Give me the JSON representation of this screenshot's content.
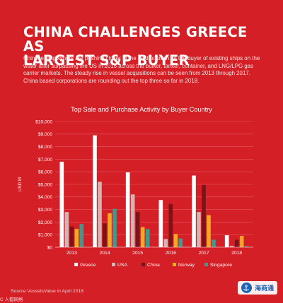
{
  "headline": {
    "line1": "CHINA CHALLENGES GREECE AS",
    "line2": "LARGEST S&P BUYER"
  },
  "description": "Chinese shipowners are pushing closer to the lead position as the buyer of existing ships on the water after surpassing the US in 2016 across the bulker, tanker, container, and LNG/LPG gas carrier markets. The steady rise in vessel acquisitions can be seen from 2013 through 2017. China based corporations are rounding out the top three so far in 2018.",
  "source": "Source VesselsValue in April 2018",
  "corner_text": "C 人都网络",
  "brand": {
    "name": "海商通"
  },
  "colors": {
    "background": "#d41f26",
    "Greece": "#ffffff",
    "USA": "#d7b3b3",
    "China": "#7b1418",
    "Norway": "#f5a623",
    "Singapore": "#3c9b8e"
  },
  "chart_data": {
    "type": "bar",
    "title": "Top Sale and Purchase Activity by Buyer Country",
    "ylabel": "USD M",
    "xlabel": "",
    "ylim": [
      0,
      10000
    ],
    "yticks": [
      "$0",
      "$1,000",
      "$2,000",
      "$3,000",
      "$4,000",
      "$5,000",
      "$6,000",
      "$7,000",
      "$8,000",
      "$9,000",
      "$10,000"
    ],
    "categories": [
      "2013",
      "2014",
      "2015",
      "2016",
      "2017",
      "2018"
    ],
    "series": [
      {
        "name": "Greece",
        "values": [
          6800,
          8900,
          5950,
          3750,
          5700,
          950
        ]
      },
      {
        "name": "USA",
        "values": [
          2800,
          5200,
          4200,
          650,
          2800,
          100
        ]
      },
      {
        "name": "China",
        "values": [
          1650,
          1900,
          2800,
          3450,
          4950,
          600
        ]
      },
      {
        "name": "Norway",
        "values": [
          1450,
          2700,
          1600,
          1050,
          2550,
          900
        ]
      },
      {
        "name": "Singapore",
        "values": [
          1850,
          3050,
          1450,
          700,
          600,
          80
        ]
      }
    ],
    "legend": "bottom",
    "grid": true
  }
}
